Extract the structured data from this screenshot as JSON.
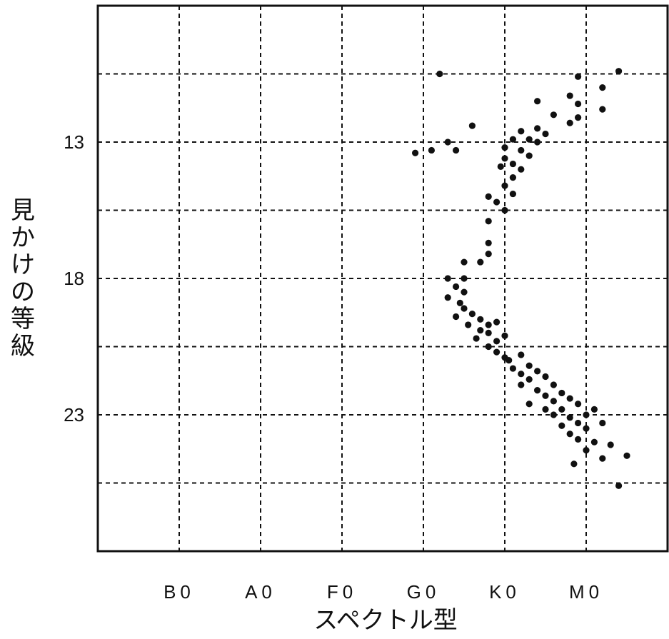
{
  "chart_data": {
    "type": "scatter",
    "title": "",
    "xlabel": "スペクトル型",
    "ylabel": "見かけの等級",
    "x_categories": [
      "B0",
      "A0",
      "F0",
      "G0",
      "K0",
      "M0"
    ],
    "x_tick_positions": [
      1,
      2,
      3,
      4,
      5,
      6
    ],
    "xlim": [
      0,
      7
    ],
    "y_ticks": [
      13,
      18,
      23
    ],
    "ylim": [
      8,
      28
    ],
    "y_inverted": true,
    "grid": true,
    "legend": "none",
    "points": [
      {
        "x": 4.2,
        "y": 10.5
      },
      {
        "x": 5.9,
        "y": 10.6
      },
      {
        "x": 6.4,
        "y": 10.4
      },
      {
        "x": 6.2,
        "y": 11.0
      },
      {
        "x": 5.8,
        "y": 11.3
      },
      {
        "x": 5.9,
        "y": 11.6
      },
      {
        "x": 5.4,
        "y": 11.5
      },
      {
        "x": 6.2,
        "y": 11.8
      },
      {
        "x": 5.6,
        "y": 12.0
      },
      {
        "x": 5.9,
        "y": 12.1
      },
      {
        "x": 5.8,
        "y": 12.3
      },
      {
        "x": 4.6,
        "y": 12.4
      },
      {
        "x": 5.4,
        "y": 12.5
      },
      {
        "x": 5.2,
        "y": 12.6
      },
      {
        "x": 5.5,
        "y": 12.7
      },
      {
        "x": 5.3,
        "y": 12.9
      },
      {
        "x": 5.1,
        "y": 12.9
      },
      {
        "x": 5.4,
        "y": 13.0
      },
      {
        "x": 4.3,
        "y": 13.0
      },
      {
        "x": 4.1,
        "y": 13.3
      },
      {
        "x": 3.9,
        "y": 13.4
      },
      {
        "x": 4.4,
        "y": 13.3
      },
      {
        "x": 5.0,
        "y": 13.2
      },
      {
        "x": 5.2,
        "y": 13.3
      },
      {
        "x": 5.3,
        "y": 13.5
      },
      {
        "x": 5.0,
        "y": 13.6
      },
      {
        "x": 5.1,
        "y": 13.8
      },
      {
        "x": 4.95,
        "y": 13.9
      },
      {
        "x": 5.2,
        "y": 14.0
      },
      {
        "x": 5.1,
        "y": 14.3
      },
      {
        "x": 5.0,
        "y": 14.6
      },
      {
        "x": 5.1,
        "y": 14.9
      },
      {
        "x": 4.8,
        "y": 15.0
      },
      {
        "x": 4.9,
        "y": 15.2
      },
      {
        "x": 5.0,
        "y": 15.5
      },
      {
        "x": 4.8,
        "y": 15.9
      },
      {
        "x": 4.8,
        "y": 16.7
      },
      {
        "x": 4.8,
        "y": 17.1
      },
      {
        "x": 4.5,
        "y": 17.4
      },
      {
        "x": 4.7,
        "y": 17.4
      },
      {
        "x": 4.3,
        "y": 18.0
      },
      {
        "x": 4.5,
        "y": 18.0
      },
      {
        "x": 4.4,
        "y": 18.3
      },
      {
        "x": 4.5,
        "y": 18.5
      },
      {
        "x": 4.3,
        "y": 18.7
      },
      {
        "x": 4.45,
        "y": 18.9
      },
      {
        "x": 4.5,
        "y": 19.1
      },
      {
        "x": 4.4,
        "y": 19.4
      },
      {
        "x": 4.6,
        "y": 19.3
      },
      {
        "x": 4.7,
        "y": 19.5
      },
      {
        "x": 4.55,
        "y": 19.7
      },
      {
        "x": 4.8,
        "y": 19.7
      },
      {
        "x": 4.9,
        "y": 19.6
      },
      {
        "x": 4.7,
        "y": 19.9
      },
      {
        "x": 4.8,
        "y": 20.0
      },
      {
        "x": 4.65,
        "y": 20.2
      },
      {
        "x": 4.9,
        "y": 20.3
      },
      {
        "x": 5.0,
        "y": 20.1
      },
      {
        "x": 4.8,
        "y": 20.5
      },
      {
        "x": 4.9,
        "y": 20.7
      },
      {
        "x": 5.0,
        "y": 20.9
      },
      {
        "x": 5.2,
        "y": 20.8
      },
      {
        "x": 5.05,
        "y": 21.0
      },
      {
        "x": 5.1,
        "y": 21.3
      },
      {
        "x": 5.3,
        "y": 21.2
      },
      {
        "x": 5.2,
        "y": 21.5
      },
      {
        "x": 5.4,
        "y": 21.4
      },
      {
        "x": 5.3,
        "y": 21.7
      },
      {
        "x": 5.5,
        "y": 21.6
      },
      {
        "x": 5.2,
        "y": 21.9
      },
      {
        "x": 5.6,
        "y": 21.9
      },
      {
        "x": 5.4,
        "y": 22.1
      },
      {
        "x": 5.5,
        "y": 22.3
      },
      {
        "x": 5.7,
        "y": 22.2
      },
      {
        "x": 5.6,
        "y": 22.5
      },
      {
        "x": 5.3,
        "y": 22.6
      },
      {
        "x": 5.8,
        "y": 22.4
      },
      {
        "x": 5.5,
        "y": 22.8
      },
      {
        "x": 5.7,
        "y": 22.8
      },
      {
        "x": 5.9,
        "y": 22.6
      },
      {
        "x": 5.6,
        "y": 23.0
      },
      {
        "x": 5.8,
        "y": 23.1
      },
      {
        "x": 6.0,
        "y": 23.0
      },
      {
        "x": 5.9,
        "y": 23.3
      },
      {
        "x": 6.1,
        "y": 22.8
      },
      {
        "x": 6.0,
        "y": 23.5
      },
      {
        "x": 5.7,
        "y": 23.4
      },
      {
        "x": 6.2,
        "y": 23.3
      },
      {
        "x": 5.8,
        "y": 23.7
      },
      {
        "x": 6.1,
        "y": 24.0
      },
      {
        "x": 5.9,
        "y": 23.9
      },
      {
        "x": 6.3,
        "y": 24.1
      },
      {
        "x": 6.0,
        "y": 24.3
      },
      {
        "x": 6.2,
        "y": 24.6
      },
      {
        "x": 5.85,
        "y": 24.8
      },
      {
        "x": 6.5,
        "y": 24.5
      },
      {
        "x": 6.4,
        "y": 25.6
      }
    ]
  }
}
